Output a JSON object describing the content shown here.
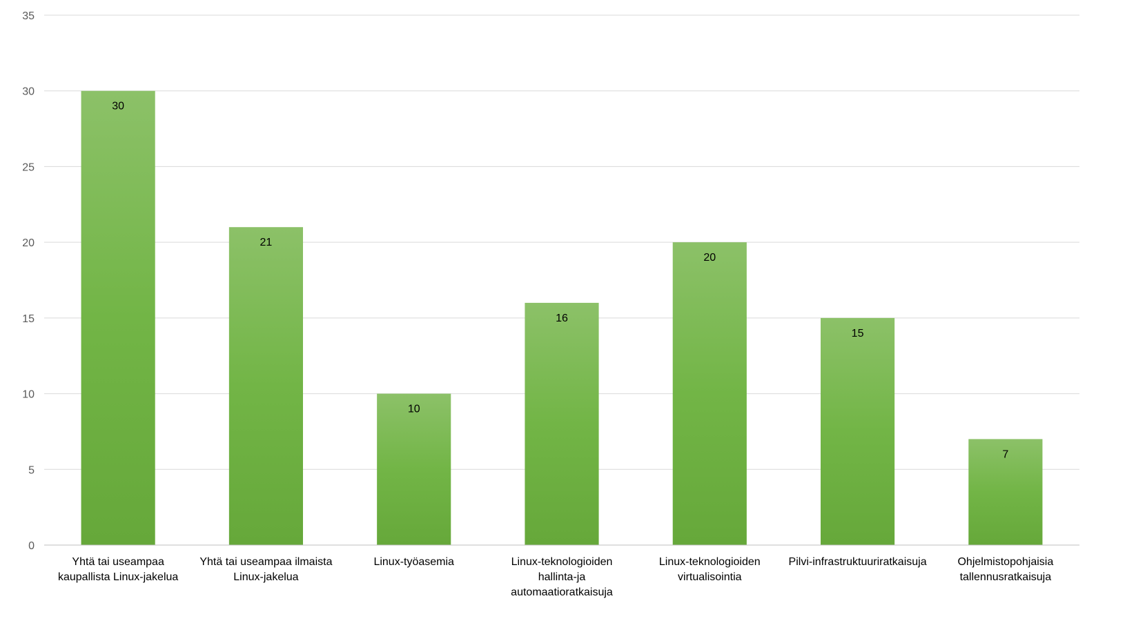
{
  "chart_data": {
    "type": "bar",
    "title": "",
    "xlabel": "",
    "ylabel": "",
    "categories": [
      [
        "Yhtä tai useampaa",
        "kaupallista Linux-jakelua"
      ],
      [
        "Yhtä tai useampaa ilmaista",
        "Linux-jakelua"
      ],
      [
        "Linux-työasemia"
      ],
      [
        "Linux-teknologioiden",
        "hallinta-ja",
        "automaatioratkaisuja"
      ],
      [
        "Linux-teknologioiden",
        "virtualisointia"
      ],
      [
        "Pilvi-infrastruktuuriratkaisuja"
      ],
      [
        "Ohjelmistopohjaisia",
        "tallennusratkaisuja"
      ]
    ],
    "values": [
      30,
      21,
      10,
      16,
      20,
      15,
      7
    ],
    "ylim": [
      0,
      35
    ],
    "yticks": [
      0,
      5,
      10,
      15,
      20,
      25,
      30,
      35
    ],
    "grid": true,
    "legend": "none",
    "colors": {
      "bar_top": "#8cc168",
      "bar_mid": "#72b546",
      "bar_bottom": "#66a83a",
      "grid": "#d9d9d9",
      "axis": "#bfbfbf",
      "tick_text": "#595959",
      "label_text": "#000000"
    }
  }
}
